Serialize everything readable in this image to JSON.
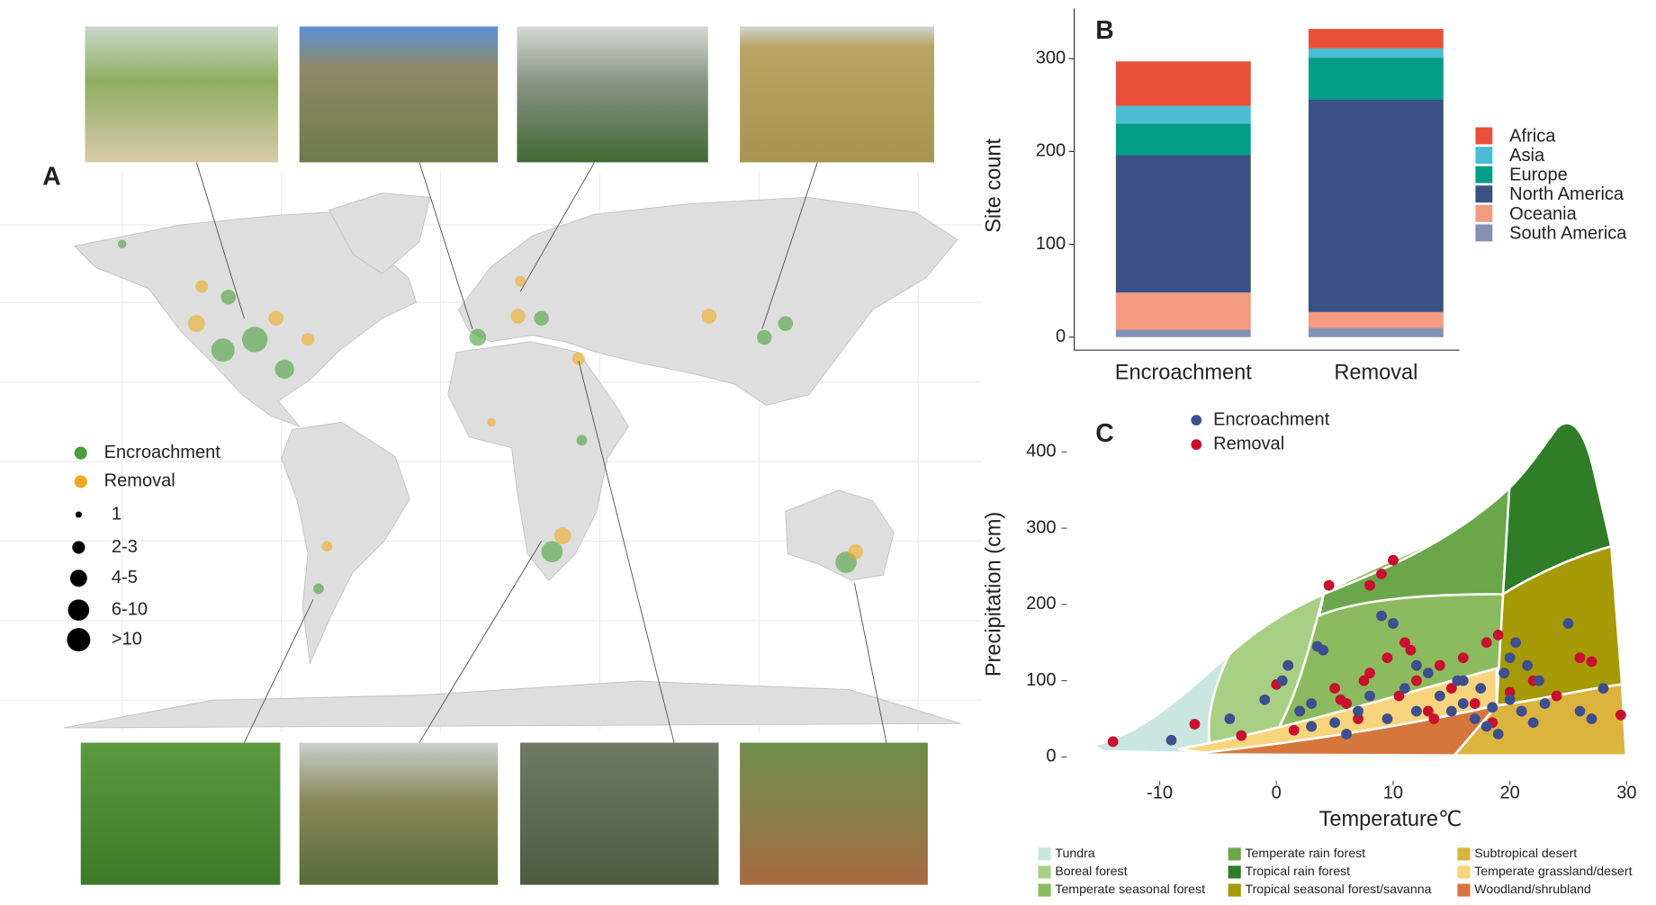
{
  "chart_data": [
    {
      "type": "map",
      "panel_label": "A",
      "series": [
        {
          "name": "Encroachment",
          "color": "#4a9e3c"
        },
        {
          "name": "Removal",
          "color": "#eeaa22"
        }
      ],
      "size_legend": [
        "1",
        "2-3",
        "4-5",
        "6-10",
        ">10"
      ]
    },
    {
      "type": "bar",
      "stacked": true,
      "panel_label": "B",
      "y_label": "Site count",
      "categories": [
        "Encroachment",
        "Removal"
      ],
      "series": [
        {
          "name": "Africa",
          "color": "#e8503a",
          "values": [
            48,
            21
          ]
        },
        {
          "name": "Asia",
          "color": "#4bbcd6",
          "values": [
            19,
            10
          ]
        },
        {
          "name": "Europe",
          "color": "#009e87",
          "values": [
            34,
            45
          ]
        },
        {
          "name": "North America",
          "color": "#3b5185",
          "values": [
            148,
            229
          ]
        },
        {
          "name": "Oceania",
          "color": "#f39b7f",
          "values": [
            40,
            17
          ]
        },
        {
          "name": "South America",
          "color": "#8491b4",
          "values": [
            8,
            10
          ]
        }
      ],
      "ylim": [
        -14,
        354
      ],
      "yticks": [
        0,
        100,
        200,
        300
      ]
    },
    {
      "type": "scatter",
      "panel_label": "C",
      "x_label": "Temperature℃",
      "y_label": "Precipitation (cm)",
      "xlim": [
        -17.5,
        31.6
      ],
      "ylim": [
        -30,
        457
      ],
      "xticks": [
        -10,
        0,
        10,
        20,
        30
      ],
      "yticks": [
        0,
        100,
        200,
        300,
        400
      ],
      "series": [
        {
          "name": "Encroachment",
          "color": "#3d4f8f",
          "x": [
            -9,
            -4,
            -1,
            0.5,
            2,
            3,
            3.5,
            4,
            5,
            6,
            7,
            8,
            9,
            9.5,
            10,
            11,
            12,
            13,
            14,
            15,
            15.5,
            16,
            17,
            17.5,
            18,
            18.5,
            19,
            19.5,
            20,
            20.5,
            21,
            21.5,
            22,
            22.5,
            23,
            25,
            26,
            27,
            28,
            3,
            1,
            12,
            16,
            20
          ],
          "y": [
            22,
            50,
            75,
            100,
            60,
            40,
            145,
            140,
            45,
            30,
            60,
            80,
            185,
            50,
            175,
            90,
            120,
            110,
            80,
            60,
            100,
            70,
            50,
            90,
            40,
            65,
            30,
            110,
            75,
            150,
            60,
            120,
            45,
            100,
            70,
            175,
            60,
            50,
            90,
            70,
            120,
            60,
            100,
            130
          ]
        },
        {
          "name": "Removal",
          "color": "#c8102e",
          "x": [
            -14,
            -7,
            -3,
            0,
            1,
            2,
            4.5,
            5,
            6,
            7,
            8,
            8,
            9,
            9.5,
            10,
            10.5,
            11,
            12,
            13,
            14,
            15,
            16,
            17,
            18,
            19,
            19.5,
            20,
            21,
            22,
            24,
            26,
            27,
            29.5,
            3,
            5.5,
            7.5,
            11.5,
            13.5,
            1.5,
            18.5
          ],
          "y": [
            20,
            43,
            28,
            95,
            120,
            60,
            225,
            90,
            70,
            50,
            225,
            110,
            240,
            130,
            258,
            80,
            150,
            100,
            60,
            120,
            90,
            130,
            70,
            150,
            160,
            110,
            85,
            60,
            100,
            80,
            130,
            125,
            55,
            40,
            75,
            100,
            140,
            50,
            35,
            45
          ]
        }
      ],
      "biomes": [
        {
          "name": "Tundra",
          "color": "#c9e6e0"
        },
        {
          "name": "Boreal forest",
          "color": "#a8d084"
        },
        {
          "name": "Temperate seasonal forest",
          "color": "#8cba5e"
        },
        {
          "name": "Temperate rain forest",
          "color": "#6aa64a"
        },
        {
          "name": "Tropical rain forest",
          "color": "#2f7d26"
        },
        {
          "name": "Tropical seasonal forest/savanna",
          "color": "#a69a06"
        },
        {
          "name": "Subtropical desert",
          "color": "#dbb43e"
        },
        {
          "name": "Temperate grassland/desert",
          "color": "#f8d47c"
        },
        {
          "name": "Woodland/shrubland",
          "color": "#d6763c"
        }
      ]
    }
  ]
}
